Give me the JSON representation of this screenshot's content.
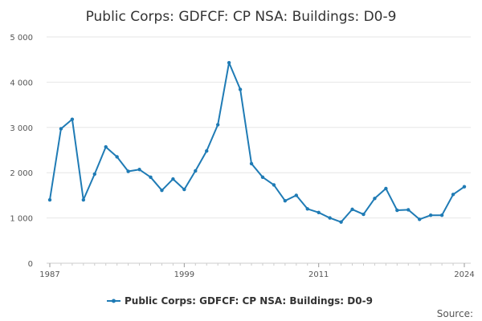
{
  "chart_data": {
    "type": "line",
    "title": "Public Corps: GDFCF: CP NSA: Buildings: D0-9",
    "xlabel": "",
    "ylabel": "",
    "x_tick_labels": [
      "1987",
      "1999",
      "2011",
      "2024"
    ],
    "x_ticks": [
      1987,
      1999,
      2011,
      2024
    ],
    "y_tick_labels": [
      "0",
      "1 000",
      "2 000",
      "3 000",
      "4 000",
      "5 000"
    ],
    "y_ticks": [
      0,
      1000,
      2000,
      3000,
      4000,
      5000
    ],
    "xlim": [
      1987,
      2024
    ],
    "ylim": [
      0,
      5000
    ],
    "grid": "horizontal",
    "legend_position": "bottom",
    "series_color": "#1f7bb5",
    "x": [
      1987,
      1988,
      1989,
      1990,
      1991,
      1992,
      1993,
      1994,
      1995,
      1996,
      1997,
      1998,
      1999,
      2000,
      2001,
      2002,
      2003,
      2004,
      2005,
      2006,
      2007,
      2008,
      2009,
      2010,
      2011,
      2012,
      2013,
      2014,
      2015,
      2016,
      2017,
      2018,
      2019,
      2020,
      2021,
      2022,
      2023,
      2024
    ],
    "series": [
      {
        "name": "Public Corps: GDFCF: CP NSA: Buildings: D0-9",
        "values": [
          1400,
          2970,
          3180,
          1400,
          1970,
          2570,
          2350,
          2030,
          2070,
          1900,
          1610,
          1860,
          1630,
          2040,
          2480,
          3060,
          4430,
          3840,
          2200,
          1900,
          1730,
          1380,
          1500,
          1200,
          1120,
          1000,
          910,
          1190,
          1080,
          1430,
          1650,
          1170,
          1180,
          970,
          1060,
          1060,
          1520,
          1690
        ]
      }
    ]
  },
  "source_label": "Source:"
}
